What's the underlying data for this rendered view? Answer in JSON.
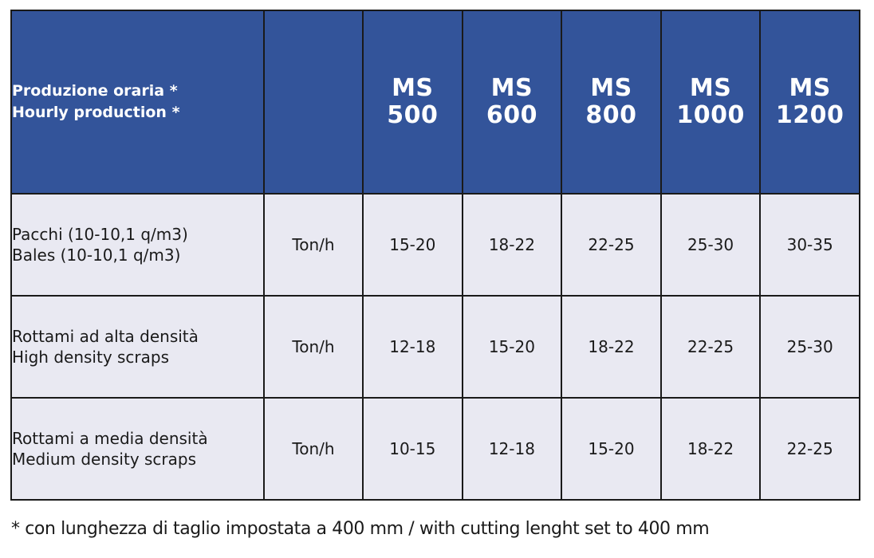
{
  "header": {
    "label_line1": "Produzione oraria *",
    "label_line2": "Hourly production *",
    "unit_header": "",
    "models": [
      {
        "line1": "MS",
        "line2": "500"
      },
      {
        "line1": "MS",
        "line2": "600"
      },
      {
        "line1": "MS",
        "line2": "800"
      },
      {
        "line1": "MS",
        "line2": "1000"
      },
      {
        "line1": "MS",
        "line2": "1200"
      }
    ]
  },
  "rows": [
    {
      "label_it": "Pacchi (10-10,1 q/m3)",
      "label_en": "Bales (10-10,1 q/m3)",
      "unit": "Ton/h",
      "values": [
        "15-20",
        "18-22",
        "22-25",
        "25-30",
        "30-35"
      ]
    },
    {
      "label_it": "Rottami ad alta densità",
      "label_en": "High density scraps",
      "unit": "Ton/h",
      "values": [
        "12-18",
        "15-20",
        "18-22",
        "22-25",
        "25-30"
      ]
    },
    {
      "label_it": "Rottami a media densità",
      "label_en": "Medium density scraps",
      "unit": "Ton/h",
      "values": [
        "10-15",
        "12-18",
        "15-20",
        "18-22",
        "22-25"
      ]
    }
  ],
  "footnote": "* con lunghezza di taglio impostata a 400 mm / with cutting lenght set to 400 mm",
  "colors": {
    "header_bg": "#33549a",
    "body_bg": "#e9e9f2",
    "border": "#1a1a1a"
  }
}
